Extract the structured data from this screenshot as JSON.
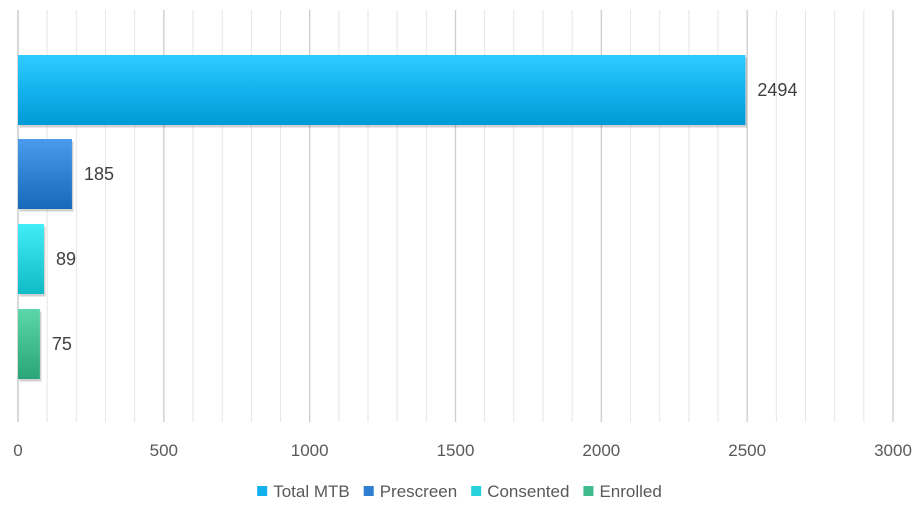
{
  "chart_data": {
    "type": "bar",
    "orientation": "horizontal",
    "title": "",
    "xlabel": "",
    "ylabel": "",
    "xlim": [
      0,
      3000
    ],
    "x_ticks": [
      0,
      500,
      1000,
      1500,
      2000,
      2500,
      3000
    ],
    "x_tick_labels": [
      "0",
      "500",
      "1000",
      "1500",
      "2000",
      "2500",
      "3000"
    ],
    "grid": true,
    "legend_position": "bottom",
    "series": [
      {
        "name": "Total MTB",
        "value": 2494,
        "label": "2494",
        "color": "#12b0ec"
      },
      {
        "name": "Prescreen",
        "value": 185,
        "label": "185",
        "color": "#2f7fd0"
      },
      {
        "name": "Consented",
        "value": 89,
        "label": "89",
        "color": "#27d1dc"
      },
      {
        "name": "Enrolled",
        "value": 75,
        "label": "75",
        "color": "#3fbb8e"
      }
    ]
  }
}
